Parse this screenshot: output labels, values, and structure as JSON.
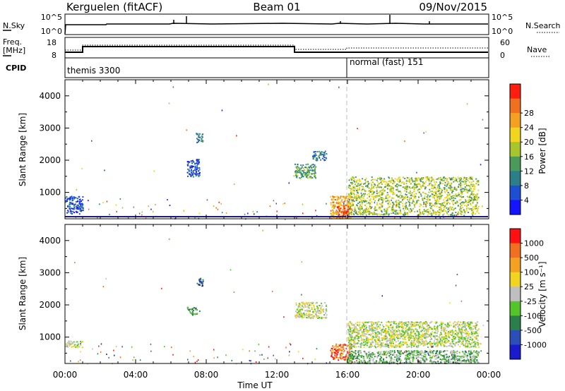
{
  "header": {
    "station": "Kerguelen (fitACF)",
    "beam": "Beam 01",
    "date": "09/Nov/2015"
  },
  "nsky_panel": {
    "left_label": "N.Sky",
    "right_label": "N.Search",
    "left_ticks": [
      "10^5",
      "10^0"
    ],
    "right_ticks": [
      "10^5",
      "10^0"
    ]
  },
  "freq_panel": {
    "left_label_1": "Freq.",
    "left_label_2": "[MHz]",
    "right_label": "Nave",
    "left_ticks": [
      "18",
      "8"
    ],
    "right_ticks": [
      "60",
      "0"
    ]
  },
  "cpid_panel": {
    "label": "CPID",
    "modes": [
      {
        "name": "themis 3300",
        "start_hour": 0
      },
      {
        "name": "normal (fast) 151",
        "start_hour": 16
      }
    ]
  },
  "x_axis": {
    "label": "Time UT",
    "tick_labels": [
      "00:00",
      "04:00",
      "08:00",
      "12:00",
      "16:00",
      "20:00",
      "00:00"
    ]
  },
  "chart_data": [
    {
      "type": "heatmap",
      "name": "power",
      "ylabel": "Slant Range [km]",
      "yticks": [
        "1000",
        "2000",
        "3000",
        "4000"
      ],
      "ylim": [
        180,
        4500
      ],
      "xlim_hours": [
        0,
        24
      ],
      "colorbar": {
        "label": "Power [dB]",
        "tick_labels": [
          "4",
          "8",
          "12",
          "16",
          "20",
          "24",
          "28"
        ],
        "colors": [
          "#1414ff",
          "#1d4fd6",
          "#2b7f8a",
          "#4a9a5a",
          "#a8c62c",
          "#f2d51e",
          "#f4a020",
          "#f07020",
          "#ff1e10"
        ]
      },
      "echo_regions": [
        {
          "t0": 0.0,
          "t1": 1.0,
          "r0": 350,
          "r1": 900,
          "level": 1
        },
        {
          "t0": 6.9,
          "t1": 7.6,
          "r0": 1500,
          "r1": 2050,
          "level": 1
        },
        {
          "t0": 7.4,
          "t1": 7.8,
          "r0": 2550,
          "r1": 2850,
          "level": 2
        },
        {
          "t0": 13.0,
          "t1": 14.2,
          "r0": 1450,
          "r1": 1900,
          "level": 3
        },
        {
          "t0": 14.0,
          "t1": 14.8,
          "r0": 2000,
          "r1": 2300,
          "level": 2
        },
        {
          "t0": 15.0,
          "t1": 16.2,
          "r0": 200,
          "r1": 900,
          "level": 6
        },
        {
          "t0": 15.4,
          "t1": 16.1,
          "r0": 250,
          "r1": 600,
          "level": 8
        },
        {
          "t0": 16.0,
          "t1": 23.4,
          "r0": 300,
          "r1": 1500,
          "level": 4
        }
      ]
    },
    {
      "type": "heatmap",
      "name": "velocity",
      "ylabel": "Slant Range [km]",
      "yticks": [
        "1000",
        "2000",
        "3000",
        "4000"
      ],
      "ylim": [
        180,
        4500
      ],
      "xlim_hours": [
        0,
        24
      ],
      "colorbar": {
        "label": "Velocity [m s⁻¹]",
        "tick_labels": [
          "1000",
          "500",
          "100",
          "25",
          "-25",
          "-100",
          "-500",
          "-1000"
        ],
        "colors": [
          "#1a1acf",
          "#2b4fb8",
          "#2b7f4a",
          "#54c42a",
          "#bfbfbf",
          "#f2d51e",
          "#f4a020",
          "#f07020",
          "#ff1010"
        ]
      },
      "echo_regions": [
        {
          "t0": 0.0,
          "t1": 1.0,
          "r0": 700,
          "r1": 900,
          "level": 4
        },
        {
          "t0": 6.9,
          "t1": 7.6,
          "r0": 1700,
          "r1": 1950,
          "level": 3
        },
        {
          "t0": 7.4,
          "t1": 7.8,
          "r0": 2600,
          "r1": 2850,
          "level": 1
        },
        {
          "t0": 13.0,
          "t1": 14.8,
          "r0": 1600,
          "r1": 2100,
          "level": 4
        },
        {
          "t0": 15.0,
          "t1": 16.2,
          "r0": 300,
          "r1": 800,
          "level": 7
        },
        {
          "t0": 16.0,
          "t1": 23.4,
          "r0": 700,
          "r1": 1500,
          "level": 4
        },
        {
          "t0": 16.0,
          "t1": 23.4,
          "r0": 200,
          "r1": 600,
          "level": 3
        }
      ]
    }
  ]
}
